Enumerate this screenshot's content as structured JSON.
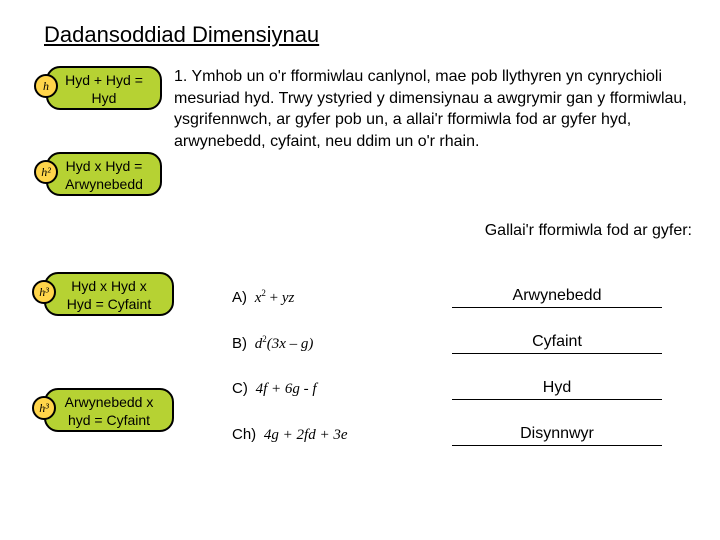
{
  "title": "Dadansoddiad Dimensiynau",
  "bubbles": {
    "b1": {
      "badge": "h",
      "line1": "Hyd + Hyd =",
      "line2": "Hyd"
    },
    "b2": {
      "badge": "h²",
      "line1": "Hyd x Hyd =",
      "line2": "Arwynebedd"
    },
    "b3": {
      "badge": "h³",
      "line1": "Hyd x Hyd x",
      "line2": "Hyd = Cyfaint"
    },
    "b4": {
      "badge": "h³",
      "line1": "Arwynebedd x",
      "line2": "hyd = Cyfaint"
    }
  },
  "mainText": "1. Ymhob un o'r fformiwlau canlynol, mae pob llythyren yn cynrychioli mesuriad hyd. Trwy ystyried y dimensiynau a awgrymir gan y fformiwlau, ysgrifennwch, ar gyfer pob un, a allai'r fformiwla fod ar gyfer hyd, arwynebedd, cyfaint, neu ddim un o'r rhain.",
  "subText": "Gallai'r fformiwla fod ar gyfer:",
  "rows": [
    {
      "label": "A)",
      "formula": "x² + yz",
      "answer": "Arwynebedd"
    },
    {
      "label": "B)",
      "formula": "d²(3x – g)",
      "answer": "Cyfaint"
    },
    {
      "label": "C)",
      "formula": "4f + 6g - f",
      "answer": "Hyd"
    },
    {
      "label": "Ch)",
      "formula": "4g + 2fd + 3e",
      "answer": "Disynnwyr"
    }
  ],
  "colors": {
    "bubble_bg": "#b6d233",
    "badge_bg": "#ffd54a",
    "border": "#000000",
    "text": "#000000",
    "bg": "#ffffff"
  }
}
